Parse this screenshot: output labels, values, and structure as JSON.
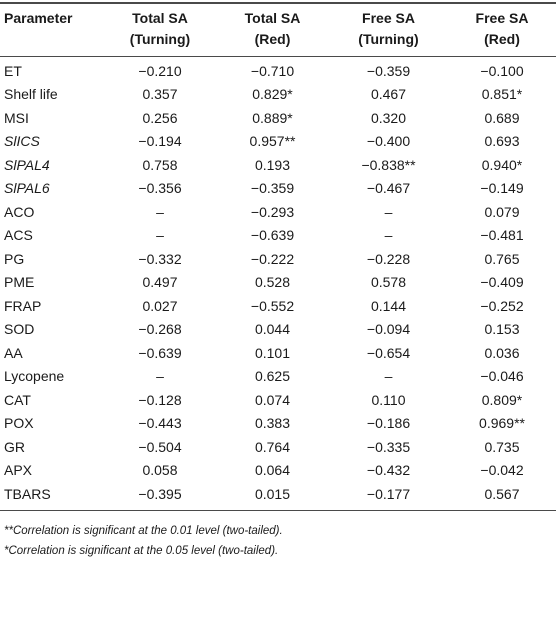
{
  "table": {
    "headers": [
      {
        "line1": "Parameter",
        "line2": ""
      },
      {
        "line1": "Total SA",
        "line2": "(Turning)"
      },
      {
        "line1": "Total SA",
        "line2": "(Red)"
      },
      {
        "line1": "Free SA",
        "line2": "(Turning)"
      },
      {
        "line1": "Free SA",
        "line2": "(Red)"
      }
    ],
    "rows": [
      {
        "param": "ET",
        "italic": false,
        "values": [
          "−0.210",
          "−0.710",
          "−0.359",
          "−0.100"
        ]
      },
      {
        "param": "Shelf life",
        "italic": false,
        "values": [
          "0.357",
          "0.829*",
          "0.467",
          "0.851*"
        ]
      },
      {
        "param": "MSI",
        "italic": false,
        "values": [
          "0.256",
          "0.889*",
          "0.320",
          "0.689"
        ]
      },
      {
        "param": "SlICS",
        "italic": true,
        "values": [
          "−0.194",
          "0.957**",
          "−0.400",
          "0.693"
        ]
      },
      {
        "param": "SlPAL4",
        "italic": true,
        "values": [
          "0.758",
          "0.193",
          "−0.838**",
          "0.940*"
        ]
      },
      {
        "param": "SlPAL6",
        "italic": true,
        "values": [
          "−0.356",
          "−0.359",
          "−0.467",
          "−0.149"
        ]
      },
      {
        "param": "ACO",
        "italic": false,
        "values": [
          "–",
          "−0.293",
          "–",
          "0.079"
        ]
      },
      {
        "param": "ACS",
        "italic": false,
        "values": [
          "–",
          "−0.639",
          "–",
          "−0.481"
        ]
      },
      {
        "param": "PG",
        "italic": false,
        "values": [
          "−0.332",
          "−0.222",
          "−0.228",
          "0.765"
        ]
      },
      {
        "param": "PME",
        "italic": false,
        "values": [
          "0.497",
          "0.528",
          "0.578",
          "−0.409"
        ]
      },
      {
        "param": "FRAP",
        "italic": false,
        "values": [
          "0.027",
          "−0.552",
          "0.144",
          "−0.252"
        ]
      },
      {
        "param": "SOD",
        "italic": false,
        "values": [
          "−0.268",
          "0.044",
          "−0.094",
          "0.153"
        ]
      },
      {
        "param": "AA",
        "italic": false,
        "values": [
          "−0.639",
          "0.101",
          "−0.654",
          "0.036"
        ]
      },
      {
        "param": "Lycopene",
        "italic": false,
        "values": [
          "–",
          "0.625",
          "–",
          "−0.046"
        ]
      },
      {
        "param": "CAT",
        "italic": false,
        "values": [
          "−0.128",
          "0.074",
          "0.110",
          "0.809*"
        ]
      },
      {
        "param": "POX",
        "italic": false,
        "values": [
          "−0.443",
          "0.383",
          "−0.186",
          "0.969**"
        ]
      },
      {
        "param": "GR",
        "italic": false,
        "values": [
          "−0.504",
          "0.764",
          "−0.335",
          "0.735"
        ]
      },
      {
        "param": "APX",
        "italic": false,
        "values": [
          "0.058",
          "0.064",
          "−0.432",
          "−0.042"
        ]
      },
      {
        "param": "TBARS",
        "italic": false,
        "values": [
          "−0.395",
          "0.015",
          "−0.177",
          "0.567"
        ]
      }
    ]
  },
  "footnotes": [
    "**Correlation is significant at the 0.01 level (two-tailed).",
    "*Correlation is significant at the 0.05 level (two-tailed)."
  ]
}
